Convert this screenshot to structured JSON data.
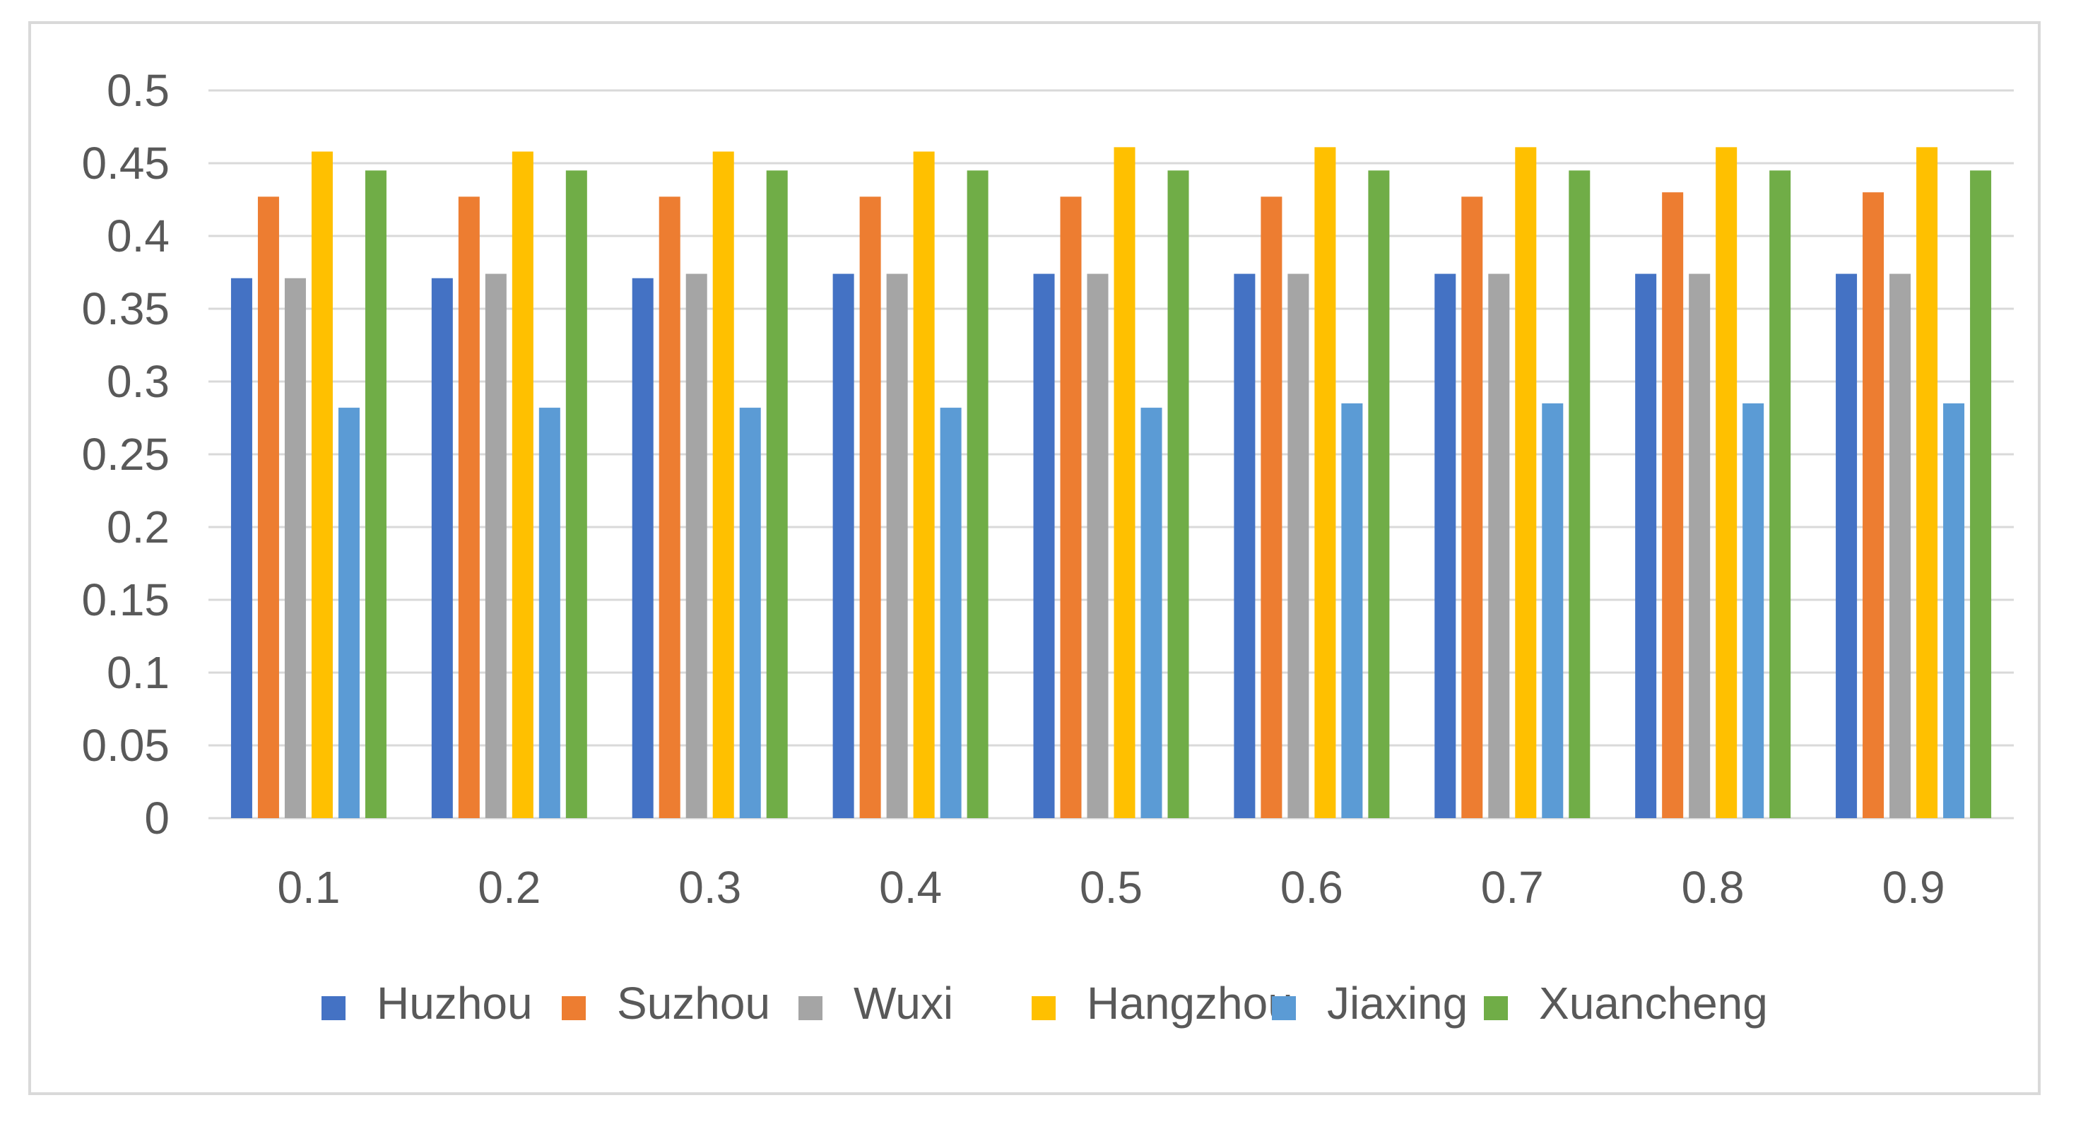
{
  "chart_data": {
    "type": "bar",
    "categories": [
      "0.1",
      "0.2",
      "0.3",
      "0.4",
      "0.5",
      "0.6",
      "0.7",
      "0.8",
      "0.9"
    ],
    "series": [
      {
        "name": "Huzhou",
        "color": "#4472c4",
        "values": [
          0.371,
          0.371,
          0.371,
          0.374,
          0.374,
          0.374,
          0.374,
          0.374,
          0.374
        ]
      },
      {
        "name": "Suzhou",
        "color": "#ed7d31",
        "values": [
          0.427,
          0.427,
          0.427,
          0.427,
          0.427,
          0.427,
          0.427,
          0.43,
          0.43
        ]
      },
      {
        "name": "Wuxi",
        "color": "#a5a5a5",
        "values": [
          0.371,
          0.374,
          0.374,
          0.374,
          0.374,
          0.374,
          0.374,
          0.374,
          0.374
        ]
      },
      {
        "name": "Hangzhou",
        "color": "#ffc000",
        "values": [
          0.458,
          0.458,
          0.458,
          0.458,
          0.461,
          0.461,
          0.461,
          0.461,
          0.461
        ]
      },
      {
        "name": "Jiaxing",
        "color": "#5b9bd5",
        "values": [
          0.282,
          0.282,
          0.282,
          0.282,
          0.282,
          0.285,
          0.285,
          0.285,
          0.285
        ]
      },
      {
        "name": "Xuancheng",
        "color": "#70ad47",
        "values": [
          0.445,
          0.445,
          0.445,
          0.445,
          0.445,
          0.445,
          0.445,
          0.445,
          0.445
        ]
      }
    ],
    "y_ticks": [
      "0",
      "0.05",
      "0.1",
      "0.15",
      "0.2",
      "0.25",
      "0.3",
      "0.35",
      "0.4",
      "0.45",
      "0.5"
    ],
    "ylim": [
      0,
      0.5
    ],
    "grid": true,
    "legend_position": "bottom",
    "title": "",
    "xlabel": "",
    "ylabel": ""
  }
}
